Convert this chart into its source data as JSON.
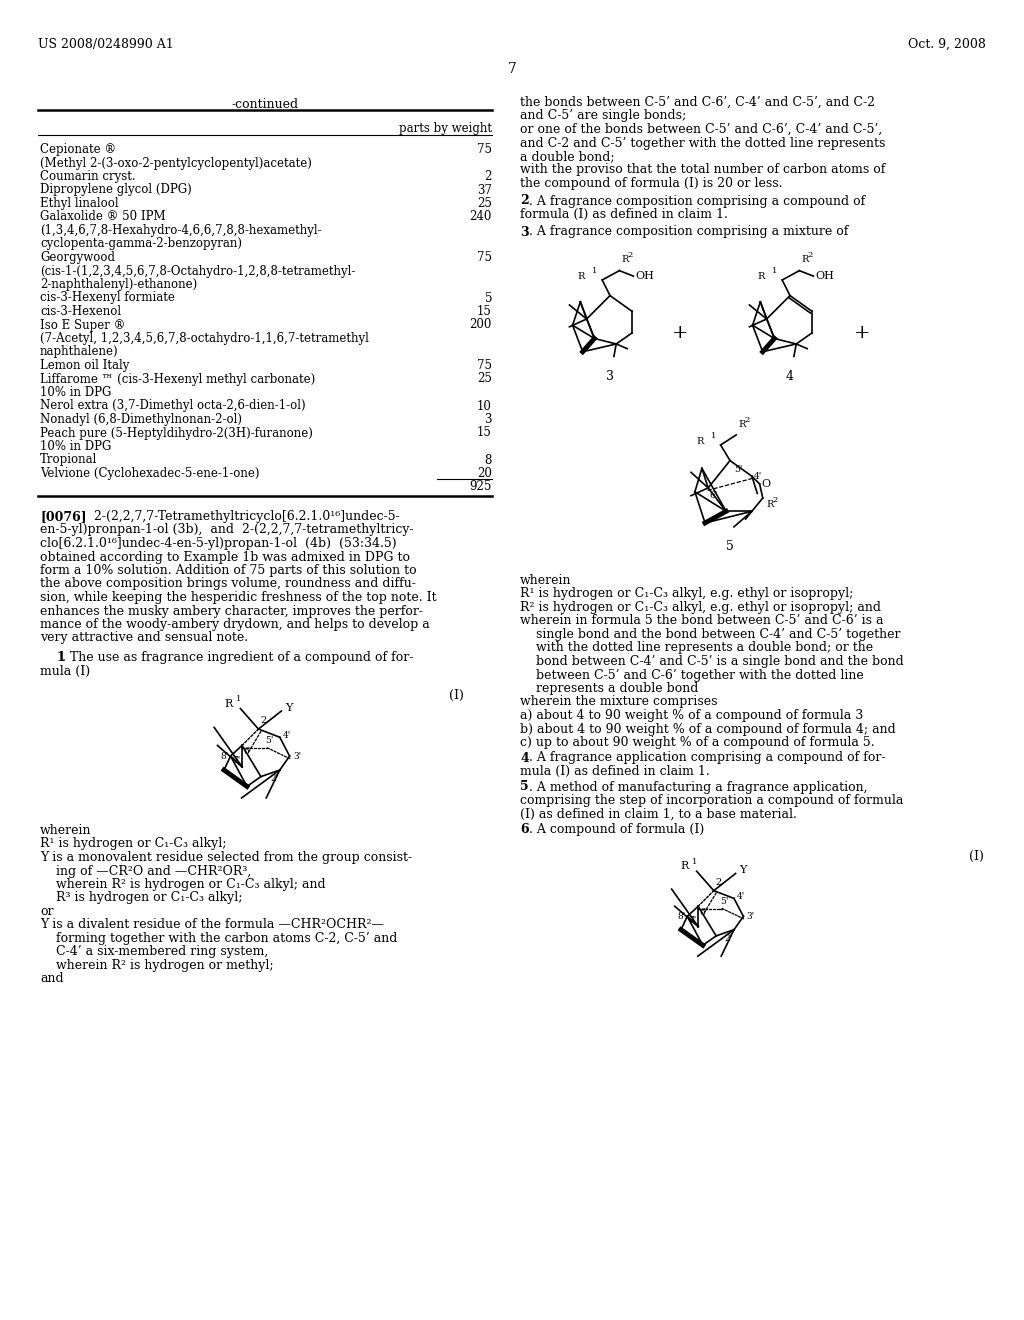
{
  "bg_color": "#ffffff",
  "header_left": "US 2008/0248990 A1",
  "header_right": "Oct. 9, 2008",
  "page_number": "7",
  "table_title": "-continued",
  "table_header": "parts by weight",
  "table_rows": [
    [
      "Cepionate ®",
      "75"
    ],
    [
      "(Methyl 2-(3-oxo-2-pentylcyclopentyl)acetate)",
      ""
    ],
    [
      "Coumarin cryst.",
      "2"
    ],
    [
      "Dipropylene glycol (DPG)",
      "37"
    ],
    [
      "Ethyl linalool",
      "25"
    ],
    [
      "Galaxolide ® 50 IPM",
      "240"
    ],
    [
      "(1,3,4,6,7,8-Hexahydro-4,6,6,7,8,8-hexamethyl-",
      ""
    ],
    [
      "cyclopenta-gamma-2-benzopyran)",
      ""
    ],
    [
      "Georgywood",
      "75"
    ],
    [
      "(cis-1-(1,2,3,4,5,6,7,8-Octahydro-1,2,8,8-tetramethyl-",
      ""
    ],
    [
      "2-naphthalenyl)-ethanone)",
      ""
    ],
    [
      "cis-3-Hexenyl formiate",
      "5"
    ],
    [
      "cis-3-Hexenol",
      "15"
    ],
    [
      "Iso E Super ®",
      "200"
    ],
    [
      "(7-Acetyl, 1,2,3,4,5,6,7,8-octahydro-1,1,6,7-tetramethyl",
      ""
    ],
    [
      "naphthalene)",
      ""
    ],
    [
      "Lemon oil Italy",
      "75"
    ],
    [
      "Liffarome ™ (cis-3-Hexenyl methyl carbonate)",
      "25"
    ],
    [
      "10% in DPG",
      ""
    ],
    [
      "Nerol extra (3,7-Dimethyl octa-2,6-dien-1-ol)",
      "10"
    ],
    [
      "Nonadyl (6,8-Dimethylnonan-2-ol)",
      "3"
    ],
    [
      "Peach pure (5-Heptyldihydro-2(3H)-furanone)",
      "15"
    ],
    [
      "10% in DPG",
      ""
    ],
    [
      "Tropional",
      "8"
    ],
    [
      "Velvione (Cyclohexadec-5-ene-1-one)",
      "20"
    ]
  ],
  "table_total": "925"
}
